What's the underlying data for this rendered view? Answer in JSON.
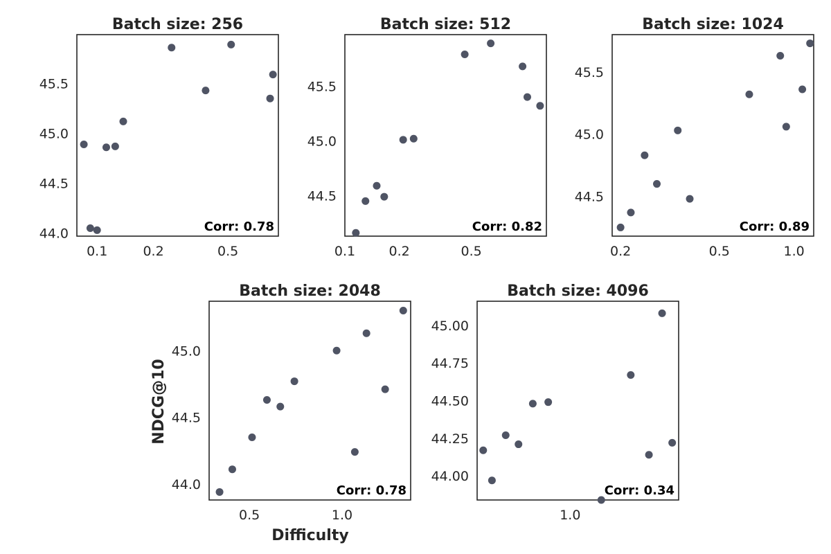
{
  "figure": {
    "xlabel": "Difficulty",
    "ylabel": "NDCG@10",
    "marker_color": "#4f5464"
  },
  "chart_data": [
    {
      "type": "scatter",
      "title": "Batch size: 256",
      "corr_label": "Corr: 0.78",
      "xscale": "log",
      "xlim": [
        0.078,
        0.93
      ],
      "ylim": [
        43.97,
        45.99
      ],
      "xticks": [
        0.1,
        0.2,
        0.5
      ],
      "xtick_labels": [
        "0.1",
        "0.2",
        "0.5"
      ],
      "yticks": [
        44.0,
        44.5,
        45.0,
        45.5
      ],
      "ytick_labels": [
        "44.0",
        "44.5",
        "45.0",
        "45.5"
      ],
      "x": [
        0.085,
        0.092,
        0.1,
        0.112,
        0.125,
        0.138,
        0.25,
        0.38,
        0.52,
        0.84,
        0.87
      ],
      "y": [
        44.89,
        44.05,
        44.03,
        44.86,
        44.87,
        45.12,
        45.86,
        45.43,
        45.89,
        45.35,
        45.59
      ]
    },
    {
      "type": "scatter",
      "title": "Batch size: 512",
      "corr_label": "Corr: 0.82",
      "xscale": "log",
      "xlim": [
        0.1,
        1.3
      ],
      "ylim": [
        44.13,
        45.97
      ],
      "xticks": [
        0.1,
        0.2,
        0.5
      ],
      "xtick_labels": [
        "0.1",
        "0.2",
        "0.5"
      ],
      "yticks": [
        44.5,
        45.0,
        45.5
      ],
      "ytick_labels": [
        "44.5",
        "45.0",
        "45.5"
      ],
      "x": [
        0.115,
        0.13,
        0.15,
        0.165,
        0.21,
        0.24,
        0.46,
        0.64,
        0.96,
        1.02,
        1.2
      ],
      "y": [
        44.16,
        44.45,
        44.59,
        44.49,
        45.01,
        45.02,
        45.79,
        45.89,
        45.68,
        45.4,
        45.32
      ],
      "xlabel": "",
      "ylabel": ""
    },
    {
      "type": "scatter",
      "title": "Batch size: 1024",
      "corr_label": "Corr: 0.89",
      "xscale": "log",
      "xlim": [
        0.185,
        1.2
      ],
      "ylim": [
        44.18,
        45.8
      ],
      "xticks": [
        0.2,
        0.5,
        1.0
      ],
      "xtick_labels": [
        "0.2",
        "0.5",
        "1.0"
      ],
      "yticks": [
        44.5,
        45.0,
        45.5
      ],
      "ytick_labels": [
        "44.5",
        "45.0",
        "45.5"
      ],
      "x": [
        0.2,
        0.22,
        0.25,
        0.28,
        0.34,
        0.38,
        0.66,
        0.88,
        0.93,
        1.08,
        1.16
      ],
      "y": [
        44.25,
        44.37,
        44.83,
        44.6,
        45.03,
        44.48,
        45.32,
        45.63,
        45.06,
        45.36,
        45.73
      ]
    },
    {
      "type": "scatter",
      "title": "Batch size: 2048",
      "corr_label": "Corr: 0.78",
      "xscale": "log",
      "xlim": [
        0.37,
        1.67
      ],
      "ylim": [
        43.88,
        45.37
      ],
      "xticks": [
        0.5,
        1.0
      ],
      "xtick_labels": [
        "0.5",
        "1.0"
      ],
      "yticks": [
        44.0,
        44.5,
        45.0
      ],
      "ytick_labels": [
        "44.0",
        "44.5",
        "45.0"
      ],
      "x": [
        0.4,
        0.44,
        0.51,
        0.57,
        0.63,
        0.7,
        0.96,
        1.1,
        1.2,
        1.38,
        1.58
      ],
      "y": [
        43.94,
        44.11,
        44.35,
        44.63,
        44.58,
        44.77,
        45.0,
        44.24,
        45.13,
        44.71,
        45.3
      ]
    },
    {
      "type": "scatter",
      "title": "Batch size: 4096",
      "corr_label": "Corr: 0.34",
      "xscale": "log",
      "xlim": [
        0.61,
        1.78
      ],
      "ylim": [
        43.84,
        45.16
      ],
      "xticks": [
        1.0
      ],
      "xtick_labels": [
        "1.0"
      ],
      "yticks": [
        44.0,
        44.25,
        44.5,
        44.75,
        45.0
      ],
      "ytick_labels": [
        "44.00",
        "44.25",
        "44.50",
        "44.75",
        "45.00"
      ],
      "x": [
        0.63,
        0.66,
        0.71,
        0.76,
        0.82,
        0.89,
        1.18,
        1.38,
        1.52,
        1.63,
        1.72
      ],
      "y": [
        44.17,
        43.97,
        44.27,
        44.21,
        44.48,
        44.49,
        43.84,
        44.67,
        44.14,
        45.08,
        44.22
      ]
    }
  ]
}
